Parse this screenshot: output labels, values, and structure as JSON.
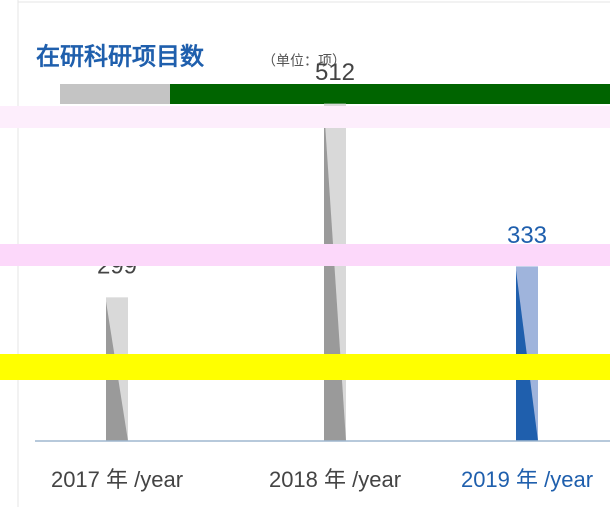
{
  "chart_data": {
    "type": "bar",
    "title": "在研科研项目数",
    "unit": "（单位：项）",
    "categories": [
      "2017 年 /year",
      "2018 年 /year",
      "2019 年 /year"
    ],
    "values": [
      299,
      512,
      333
    ],
    "colors": [
      "#d9d9d9",
      "#d9d9d9",
      "#9fb4dc"
    ],
    "shade_colors": [
      "#9a9a9a",
      "#9a9a9a",
      "#1f5fad"
    ],
    "label_colors": [
      "#444444",
      "#444444",
      "#1f5fad"
    ],
    "ylim": [
      141,
      560
    ]
  }
}
